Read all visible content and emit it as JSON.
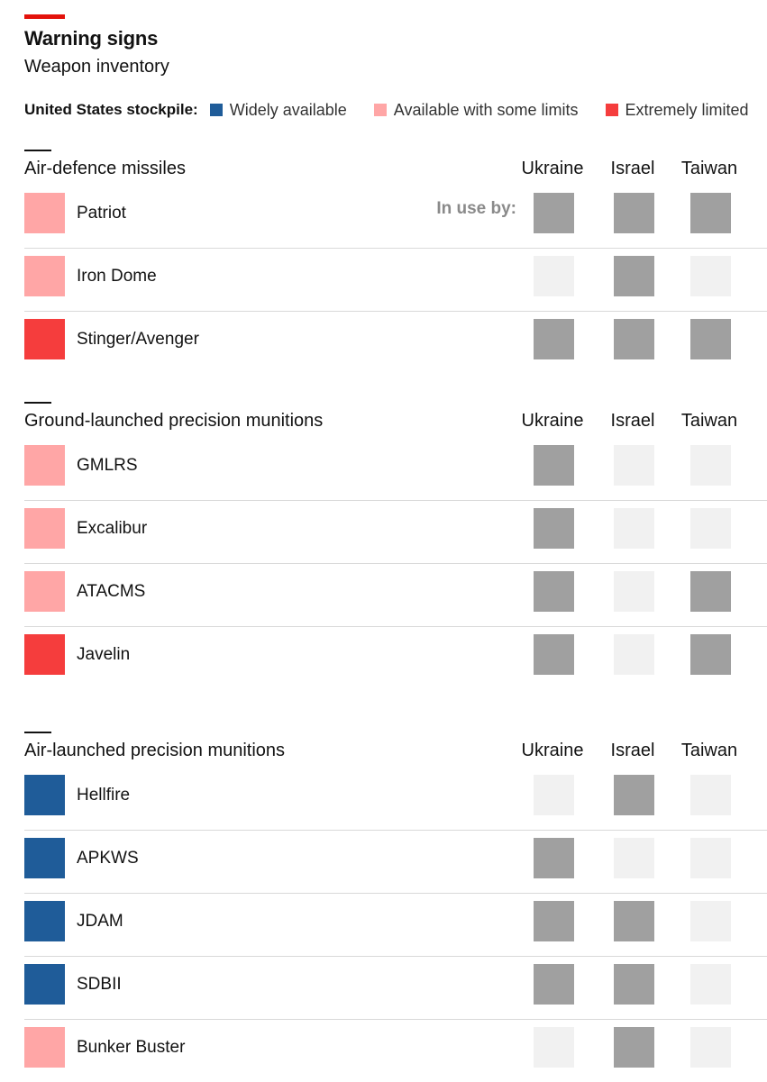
{
  "title": "Warning signs",
  "subtitle": "Weapon inventory",
  "colors": {
    "brand_red_rule": "#e3120b",
    "widely_available": "#1f5c99",
    "some_limits": "#ffa6a6",
    "extremely_limited": "#f53d3d",
    "in_use": "#a0a0a0",
    "not_in_use": "#f1f1f1"
  },
  "legend": {
    "title": "United States stockpile:",
    "items": [
      {
        "label": "Widely available",
        "status": "widely_available"
      },
      {
        "label": "Available with some limits",
        "status": "some_limits"
      },
      {
        "label": "Extremely limited",
        "status": "extremely_limited"
      }
    ]
  },
  "in_use_label": "In use by:",
  "chart_data": {
    "type": "table",
    "columns": [
      "Ukraine",
      "Israel",
      "Taiwan"
    ],
    "sections": [
      {
        "title": "Air-defence missiles",
        "rows": [
          {
            "weapon": "Patriot",
            "stockpile": "some_limits",
            "in_use": [
              true,
              true,
              true
            ]
          },
          {
            "weapon": "Iron Dome",
            "stockpile": "some_limits",
            "in_use": [
              false,
              true,
              false
            ]
          },
          {
            "weapon": "Stinger/Avenger",
            "stockpile": "extremely_limited",
            "in_use": [
              true,
              true,
              true
            ]
          }
        ]
      },
      {
        "title": "Ground-launched precision munitions",
        "rows": [
          {
            "weapon": "GMLRS",
            "stockpile": "some_limits",
            "in_use": [
              true,
              false,
              false
            ]
          },
          {
            "weapon": "Excalibur",
            "stockpile": "some_limits",
            "in_use": [
              true,
              false,
              false
            ]
          },
          {
            "weapon": "ATACMS",
            "stockpile": "some_limits",
            "in_use": [
              true,
              false,
              true
            ]
          },
          {
            "weapon": "Javelin",
            "stockpile": "extremely_limited",
            "in_use": [
              true,
              false,
              true
            ]
          }
        ]
      },
      {
        "title": "Air-launched precision munitions",
        "rows": [
          {
            "weapon": "Hellfire",
            "stockpile": "widely_available",
            "in_use": [
              false,
              true,
              false
            ]
          },
          {
            "weapon": "APKWS",
            "stockpile": "widely_available",
            "in_use": [
              true,
              false,
              false
            ]
          },
          {
            "weapon": "JDAM",
            "stockpile": "widely_available",
            "in_use": [
              true,
              true,
              false
            ]
          },
          {
            "weapon": "SDBII",
            "stockpile": "widely_available",
            "in_use": [
              true,
              true,
              false
            ]
          },
          {
            "weapon": "Bunker Buster",
            "stockpile": "some_limits",
            "in_use": [
              false,
              true,
              false
            ]
          }
        ]
      }
    ]
  }
}
